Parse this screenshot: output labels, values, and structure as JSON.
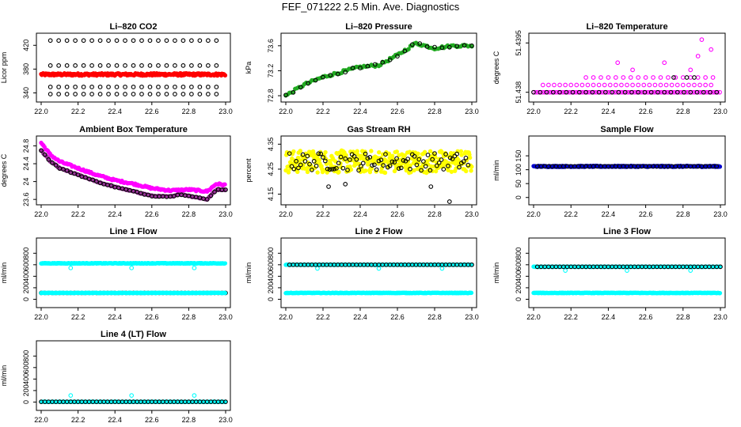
{
  "figure": {
    "title": "FEF_071222  2.5 Min. Ave. Diagnostics"
  },
  "chart_data": [
    {
      "type": "scatter",
      "title": "Li–820 CO2",
      "ylabel": "Licor ppm",
      "xlim": [
        22.0,
        23.0
      ],
      "ylim": [
        330,
        435
      ],
      "xticks": [
        22.0,
        22.2,
        22.4,
        22.6,
        22.8,
        23.0
      ],
      "yticks": [
        340,
        380,
        420
      ],
      "series": [
        {
          "kind": "band",
          "color": "#ff0000",
          "symbol": "disc",
          "x_range": [
            22.0,
            23.0
          ],
          "y_center": 371,
          "y_jitter": 2
        },
        {
          "kind": "rows",
          "color": "#000000",
          "symbol": "ring",
          "x_range": [
            22.05,
            22.99
          ],
          "y_levels": [
            338,
            350,
            386,
            428
          ],
          "step": 0.045
        }
      ]
    },
    {
      "type": "scatter",
      "title": "Li–820 Pressure",
      "ylabel": "kPa",
      "xlim": [
        22.0,
        23.0
      ],
      "ylim": [
        72.75,
        73.75
      ],
      "xticks": [
        22.0,
        22.2,
        22.4,
        22.6,
        22.8,
        23.0
      ],
      "yticks": [
        72.8,
        73.2,
        73.6
      ],
      "series": [
        {
          "kind": "curve",
          "color": "#22aa22",
          "symbol": "disc",
          "points": [
            [
              22.0,
              72.8
            ],
            [
              22.1,
              72.98
            ],
            [
              22.2,
              73.1
            ],
            [
              22.3,
              73.18
            ],
            [
              22.4,
              73.26
            ],
            [
              22.5,
              73.29
            ],
            [
              22.6,
              73.45
            ],
            [
              22.7,
              73.64
            ],
            [
              22.8,
              73.56
            ],
            [
              22.9,
              73.6
            ],
            [
              23.0,
              73.6
            ]
          ],
          "step": 0.01,
          "jitter": 0.02
        },
        {
          "kind": "curve",
          "color": "#000000",
          "symbol": "ring",
          "points": [
            [
              22.0,
              72.8
            ],
            [
              22.1,
              72.98
            ],
            [
              22.2,
              73.1
            ],
            [
              22.3,
              73.18
            ],
            [
              22.4,
              73.26
            ],
            [
              22.5,
              73.29
            ],
            [
              22.6,
              73.45
            ],
            [
              22.7,
              73.64
            ],
            [
              22.8,
              73.56
            ],
            [
              22.9,
              73.6
            ],
            [
              23.0,
              73.6
            ]
          ],
          "step": 0.04,
          "jitter": 0.02
        }
      ]
    },
    {
      "type": "scatter",
      "title": "Li–820 Temperature",
      "ylabel": "degrees C",
      "xlim": [
        22.0,
        23.0
      ],
      "ylim": [
        51.4378,
        51.4397
      ],
      "xticks": [
        22.0,
        22.2,
        22.4,
        22.6,
        22.8,
        23.0
      ],
      "yticks": [
        51.438,
        51.4395
      ],
      "series": [
        {
          "kind": "rows",
          "color": "#ff00ff",
          "symbol": "ring",
          "x_range": [
            22.0,
            23.0
          ],
          "y_levels": [
            51.438
          ],
          "step": 0.012
        },
        {
          "kind": "rows",
          "color": "#ff00ff",
          "symbol": "ring",
          "x_range": [
            22.05,
            22.97
          ],
          "y_levels": [
            51.43822
          ],
          "step": 0.03
        },
        {
          "kind": "rows",
          "color": "#ff00ff",
          "symbol": "ring",
          "x_range": [
            22.28,
            22.98
          ],
          "y_levels": [
            51.43845
          ],
          "step": 0.04
        },
        {
          "kind": "list",
          "color": "#ff00ff",
          "symbol": "ring",
          "points": [
            [
              22.45,
              51.4389
            ],
            [
              22.53,
              51.43868
            ],
            [
              22.7,
              51.4389
            ],
            [
              22.84,
              51.43868
            ],
            [
              22.88,
              51.4391
            ],
            [
              22.95,
              51.4393
            ],
            [
              22.9,
              51.4396
            ]
          ]
        },
        {
          "kind": "rows",
          "color": "#000000",
          "symbol": "ring",
          "x_range": [
            22.0,
            23.0
          ],
          "y_levels": [
            51.438
          ],
          "step": 0.035
        },
        {
          "kind": "list",
          "color": "#000000",
          "symbol": "ring",
          "points": [
            [
              22.75,
              51.43845
            ],
            [
              22.82,
              51.43845
            ],
            [
              22.86,
              51.43845
            ]
          ]
        }
      ]
    },
    {
      "type": "scatter",
      "title": "Ambient Box Temperature",
      "ylabel": "degrees C",
      "xlim": [
        22.0,
        23.0
      ],
      "ylim": [
        23.55,
        24.95
      ],
      "xticks": [
        22.0,
        22.2,
        22.4,
        22.6,
        22.8,
        23.0
      ],
      "yticks": [
        23.6,
        24.0,
        24.4,
        24.8
      ],
      "series": [
        {
          "kind": "curve",
          "color": "#ff00ff",
          "symbol": "disc",
          "points": [
            [
              22.0,
              24.87
            ],
            [
              22.05,
              24.6
            ],
            [
              22.1,
              24.45
            ],
            [
              22.2,
              24.3
            ],
            [
              22.3,
              24.15
            ],
            [
              22.4,
              24.03
            ],
            [
              22.5,
              23.95
            ],
            [
              22.6,
              23.85
            ],
            [
              22.7,
              23.8
            ],
            [
              22.8,
              23.82
            ],
            [
              22.9,
              23.78
            ],
            [
              22.95,
              23.95
            ],
            [
              23.0,
              23.92
            ]
          ],
          "step": 0.006,
          "jitter": 0.02
        },
        {
          "kind": "curve",
          "color": "#993399",
          "symbol": "disc",
          "points": [
            [
              22.0,
              24.7
            ],
            [
              22.05,
              24.45
            ],
            [
              22.1,
              24.3
            ],
            [
              22.2,
              24.15
            ],
            [
              22.3,
              24.0
            ],
            [
              22.4,
              23.88
            ],
            [
              22.5,
              23.78
            ],
            [
              22.6,
              23.68
            ],
            [
              22.7,
              23.66
            ],
            [
              22.75,
              23.72
            ],
            [
              22.85,
              23.64
            ],
            [
              22.9,
              23.6
            ],
            [
              22.95,
              23.82
            ],
            [
              23.0,
              23.82
            ]
          ],
          "step": 0.006,
          "jitter": 0.012
        },
        {
          "kind": "curve",
          "color": "#000000",
          "symbol": "ring",
          "points": [
            [
              22.0,
              24.7
            ],
            [
              22.05,
              24.45
            ],
            [
              22.1,
              24.3
            ],
            [
              22.2,
              24.15
            ],
            [
              22.3,
              24.0
            ],
            [
              22.4,
              23.88
            ],
            [
              22.5,
              23.78
            ],
            [
              22.6,
              23.68
            ],
            [
              22.7,
              23.66
            ],
            [
              22.75,
              23.72
            ],
            [
              22.85,
              23.64
            ],
            [
              22.9,
              23.6
            ],
            [
              22.95,
              23.82
            ],
            [
              23.0,
              23.82
            ]
          ],
          "step": 0.02,
          "jitter": 0.01
        }
      ]
    },
    {
      "type": "scatter",
      "title": "Gas Stream RH",
      "ylabel": "percent",
      "xlim": [
        22.0,
        23.0
      ],
      "ylim": [
        4.12,
        4.37
      ],
      "xticks": [
        22.0,
        22.2,
        22.4,
        22.6,
        22.8,
        23.0
      ],
      "yticks": [
        4.15,
        4.25,
        4.35
      ],
      "series": [
        {
          "kind": "noise",
          "color": "#ffff00",
          "symbol": "disc",
          "x_range": [
            22.0,
            23.0
          ],
          "y_center": 4.28,
          "y_spread": 0.045,
          "step": 0.003
        },
        {
          "kind": "noise",
          "color": "#000000",
          "symbol": "ring",
          "x_range": [
            22.02,
            22.99
          ],
          "y_center": 4.28,
          "y_spread": 0.035,
          "step": 0.012
        },
        {
          "kind": "list",
          "color": "#000000",
          "symbol": "ring",
          "points": [
            [
              22.23,
              4.18
            ],
            [
              22.88,
              4.12
            ],
            [
              22.78,
              4.18
            ],
            [
              22.32,
              4.19
            ]
          ]
        }
      ]
    },
    {
      "type": "scatter",
      "title": "Sample Flow",
      "ylabel": "ml/min",
      "xlim": [
        22.0,
        23.0
      ],
      "ylim": [
        -15,
        210
      ],
      "xticks": [
        22.0,
        22.2,
        22.4,
        22.6,
        22.8,
        23.0
      ],
      "yticks": [
        0,
        50,
        100,
        150
      ],
      "series": [
        {
          "kind": "band",
          "color": "#0000cc",
          "symbol": "disc",
          "x_range": [
            22.0,
            23.0
          ],
          "y_center": 112,
          "y_jitter": 2
        },
        {
          "kind": "rows",
          "color": "#000000",
          "symbol": "ring",
          "x_range": [
            22.02,
            22.99
          ],
          "y_levels": [
            112
          ],
          "step": 0.02
        }
      ]
    },
    {
      "type": "scatter",
      "title": "Line 1 Flow",
      "ylabel": "ml/min",
      "xlim": [
        22.0,
        23.0
      ],
      "ylim": [
        -90,
        1010
      ],
      "xticks": [
        22.0,
        22.2,
        22.4,
        22.6,
        22.8,
        23.0
      ],
      "yticks": [
        0,
        200,
        400,
        600,
        800
      ],
      "series": [
        {
          "kind": "band",
          "color": "#00ffff",
          "symbol": "disc",
          "x_range": [
            22.0,
            23.0
          ],
          "y_center": 625,
          "y_jitter": 5
        },
        {
          "kind": "list",
          "color": "#00ffff",
          "symbol": "ring",
          "points": [
            [
              22.16,
              545
            ],
            [
              22.49,
              545
            ],
            [
              22.83,
              545
            ]
          ]
        },
        {
          "kind": "rows",
          "color": "#000000",
          "symbol": "ring",
          "x_range": [
            22.0,
            23.0
          ],
          "y_levels": [
            110
          ],
          "step": 0.02
        },
        {
          "kind": "band",
          "color": "#00ffff",
          "symbol": "disc",
          "x_range": [
            22.0,
            23.0
          ],
          "y_center": 110,
          "y_jitter": 3
        }
      ]
    },
    {
      "type": "scatter",
      "title": "Line 2 Flow",
      "ylabel": "ml/min",
      "xlim": [
        22.0,
        23.0
      ],
      "ylim": [
        -90,
        1010
      ],
      "xticks": [
        22.0,
        22.2,
        22.4,
        22.6,
        22.8,
        23.0
      ],
      "yticks": [
        0,
        200,
        400,
        600,
        800
      ],
      "series": [
        {
          "kind": "band",
          "color": "#00ffff",
          "symbol": "disc",
          "x_range": [
            22.0,
            23.0
          ],
          "y_center": 110,
          "y_jitter": 4
        },
        {
          "kind": "band",
          "color": "#00ffff",
          "symbol": "disc",
          "x_range": [
            22.0,
            23.0
          ],
          "y_center": 600,
          "y_jitter": 3
        },
        {
          "kind": "list",
          "color": "#00ffff",
          "symbol": "ring",
          "points": [
            [
              22.17,
              535
            ],
            [
              22.5,
              535
            ],
            [
              22.84,
              535
            ]
          ]
        },
        {
          "kind": "rows",
          "color": "#000000",
          "symbol": "ring",
          "x_range": [
            22.02,
            23.0
          ],
          "y_levels": [
            600
          ],
          "step": 0.02
        }
      ]
    },
    {
      "type": "scatter",
      "title": "Line 3 Flow",
      "ylabel": "ml/min",
      "xlim": [
        22.0,
        23.0
      ],
      "ylim": [
        -90,
        1010
      ],
      "xticks": [
        22.0,
        22.2,
        22.4,
        22.6,
        22.8,
        23.0
      ],
      "yticks": [
        0,
        200,
        400,
        600,
        800
      ],
      "series": [
        {
          "kind": "band",
          "color": "#00ffff",
          "symbol": "disc",
          "x_range": [
            22.0,
            23.0
          ],
          "y_center": 110,
          "y_jitter": 4
        },
        {
          "kind": "band",
          "color": "#00ffff",
          "symbol": "disc",
          "x_range": [
            22.0,
            23.0
          ],
          "y_center": 565,
          "y_jitter": 3
        },
        {
          "kind": "list",
          "color": "#00ffff",
          "symbol": "ring",
          "points": [
            [
              22.17,
              500
            ],
            [
              22.5,
              500
            ],
            [
              22.84,
              500
            ]
          ]
        },
        {
          "kind": "rows",
          "color": "#000000",
          "symbol": "ring",
          "x_range": [
            22.02,
            23.0
          ],
          "y_levels": [
            565
          ],
          "step": 0.02
        }
      ]
    },
    {
      "type": "scatter",
      "title": "Line 4 (LT) Flow",
      "ylabel": "ml/min",
      "xlim": [
        22.0,
        23.0
      ],
      "ylim": [
        -90,
        1010
      ],
      "xticks": [
        22.0,
        22.2,
        22.4,
        22.6,
        22.8,
        23.0
      ],
      "yticks": [
        0,
        200,
        400,
        600,
        800
      ],
      "series": [
        {
          "kind": "band",
          "color": "#00ffff",
          "symbol": "disc",
          "x_range": [
            22.0,
            23.0
          ],
          "y_center": 5,
          "y_jitter": 2
        },
        {
          "kind": "rows",
          "color": "#000000",
          "symbol": "ring",
          "x_range": [
            22.0,
            23.0
          ],
          "y_levels": [
            5
          ],
          "step": 0.02
        },
        {
          "kind": "list",
          "color": "#00ffff",
          "symbol": "ring",
          "points": [
            [
              22.16,
              115
            ],
            [
              22.49,
              115
            ],
            [
              22.83,
              115
            ]
          ]
        }
      ]
    }
  ]
}
